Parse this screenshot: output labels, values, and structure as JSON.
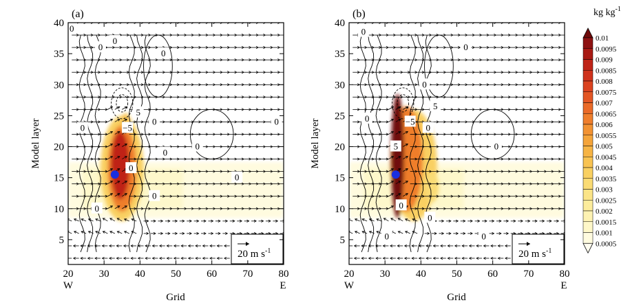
{
  "chart_data": {
    "type": "heatmap",
    "panels": [
      {
        "label": "(a)",
        "xlabel": "Grid",
        "ylabel": "Model layer",
        "x_range": [
          20,
          80
        ],
        "y_range": [
          1,
          40
        ],
        "x_ticks": [
          20,
          30,
          40,
          50,
          60,
          70,
          80
        ],
        "y_ticks": [
          5,
          10,
          15,
          20,
          25,
          30,
          35,
          40
        ],
        "x_end_labels": [
          "W",
          "E"
        ],
        "marker": {
          "x": 33,
          "y": 15.5,
          "color": "#1a2fe0"
        },
        "reference_vector": {
          "text": "20 m s",
          "exponent": "-1"
        },
        "contour_labels": [
          {
            "text": "0",
            "x": 29,
            "y": 36
          },
          {
            "text": "0",
            "x": 33,
            "y": 37
          },
          {
            "text": "0",
            "x": 46.5,
            "y": 35
          },
          {
            "text": "5",
            "x": 39.5,
            "y": 25.5
          },
          {
            "text": "0",
            "x": 24,
            "y": 23
          },
          {
            "text": "−5",
            "x": 36.5,
            "y": 23
          },
          {
            "text": "0",
            "x": 44,
            "y": 24
          },
          {
            "text": "0",
            "x": 47,
            "y": 19
          },
          {
            "text": "0",
            "x": 56,
            "y": 20
          },
          {
            "text": "0",
            "x": 37.5,
            "y": 16.5
          },
          {
            "text": "0",
            "x": 44,
            "y": 12
          },
          {
            "text": "0",
            "x": 67,
            "y": 15
          },
          {
            "text": "0",
            "x": 28,
            "y": 10
          },
          {
            "text": "0",
            "x": 78,
            "y": 24
          },
          {
            "text": "0",
            "x": 21,
            "y": 39
          }
        ],
        "blobs": [
          {
            "cx": 35,
            "cy": 16.5,
            "rx": 6,
            "ry": 8.5,
            "value": 0.0035
          },
          {
            "cx": 35,
            "cy": 16.5,
            "rx": 4,
            "ry": 7,
            "value": 0.006
          },
          {
            "cx": 34.5,
            "cy": 17,
            "rx": 2.6,
            "ry": 5.5,
            "value": 0.0085
          },
          {
            "cx": 36,
            "cy": 24,
            "rx": 1.4,
            "ry": 1.4,
            "value": 0.004
          }
        ]
      },
      {
        "label": "(b)",
        "xlabel": "Grid",
        "ylabel": "Model layer",
        "x_range": [
          20,
          80
        ],
        "y_range": [
          1,
          40
        ],
        "x_ticks": [
          20,
          30,
          40,
          50,
          60,
          70,
          80
        ],
        "y_ticks": [
          5,
          10,
          15,
          20,
          25,
          30,
          35,
          40
        ],
        "x_end_labels": [
          "W",
          "E"
        ],
        "marker": {
          "x": 33,
          "y": 15.5,
          "color": "#1a2fe0"
        },
        "reference_vector": {
          "text": "20 m s",
          "exponent": "-1"
        },
        "contour_labels": [
          {
            "text": "0",
            "x": 24,
            "y": 38.5
          },
          {
            "text": "0",
            "x": 41,
            "y": 30
          },
          {
            "text": "0",
            "x": 52.5,
            "y": 36
          },
          {
            "text": "5",
            "x": 44,
            "y": 26.5
          },
          {
            "text": "0",
            "x": 25,
            "y": 24.5
          },
          {
            "text": "−5",
            "x": 37,
            "y": 24
          },
          {
            "text": "0",
            "x": 42,
            "y": 23
          },
          {
            "text": "5",
            "x": 33,
            "y": 20
          },
          {
            "text": "0",
            "x": 61,
            "y": 20
          },
          {
            "text": "0",
            "x": 34.5,
            "y": 10.5
          },
          {
            "text": "0",
            "x": 42.5,
            "y": 8.5
          },
          {
            "text": "0",
            "x": 30.5,
            "y": 5.5
          },
          {
            "text": "0",
            "x": 57.5,
            "y": 5.5
          }
        ],
        "blobs": [
          {
            "cx": 38,
            "cy": 17,
            "rx": 6.5,
            "ry": 9,
            "value": 0.0035
          },
          {
            "cx": 36,
            "cy": 18,
            "rx": 4.5,
            "ry": 8.5,
            "value": 0.006
          },
          {
            "cx": 33.5,
            "cy": 18.5,
            "rx": 1.8,
            "ry": 10,
            "value": 0.01
          },
          {
            "cx": 43,
            "cy": 13.5,
            "rx": 2,
            "ry": 2.5,
            "value": 0.003
          }
        ]
      }
    ],
    "colorbar": {
      "unit": "kg kg",
      "unit_exponent": "-1",
      "levels": [
        "0.01",
        "0.0095",
        "0.009",
        "0.0085",
        "0.008",
        "0.0075",
        "0.007",
        "0.0065",
        "0.006",
        "0.0055",
        "0.005",
        "0.0045",
        "0.004",
        "0.0035",
        "0.003",
        "0.0025",
        "0.002",
        "0.0015",
        "0.001",
        "0.0005"
      ],
      "colors": [
        "#6f0a0a",
        "#8e1212",
        "#a81a14",
        "#bf2418",
        "#cf321c",
        "#db4320",
        "#e35624",
        "#ea6a28",
        "#ef7e2c",
        "#f29232",
        "#f4a43a",
        "#f6b445",
        "#f8c352",
        "#f9d062",
        "#fadb74",
        "#fbe487",
        "#fcec9c",
        "#fdf2b2",
        "#fef7c8",
        "#fffbdf",
        "#fffdf0"
      ]
    }
  }
}
